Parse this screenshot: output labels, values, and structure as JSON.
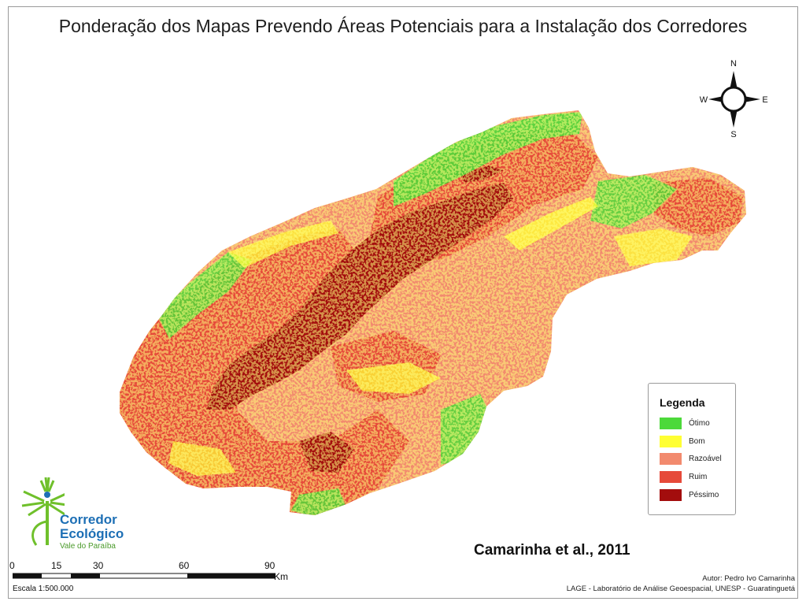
{
  "title": "Ponderação dos Mapas Prevendo Áreas Potenciais para a Instalação dos Corredores",
  "compass": {
    "north": "N",
    "south": "S",
    "east": "E",
    "west": "W"
  },
  "legend": {
    "title": "Legenda",
    "items": [
      {
        "label": "Ótimo",
        "color": "#4cd93a"
      },
      {
        "label": "Bom",
        "color": "#ffff33"
      },
      {
        "label": "Razoável",
        "color": "#f28a6e"
      },
      {
        "label": "Ruim",
        "color": "#e64a3a"
      },
      {
        "label": "Péssimo",
        "color": "#a30d0d"
      }
    ]
  },
  "logo": {
    "line1": "Corredor",
    "line2": "Ecológico",
    "line3": "Vale do Paraíba"
  },
  "citation": "Camarinha et al., 2011",
  "scale": {
    "ticks": [
      "0",
      "15",
      "30",
      "60",
      "90"
    ],
    "unit": "Km",
    "caption": "Escala 1:500.000"
  },
  "author": {
    "line1": "Autor: Pedro Ivo Camarinha",
    "line2": "LAGE - Laboratório de Análise Geoespacial, UNESP - Guaratinguetá"
  }
}
